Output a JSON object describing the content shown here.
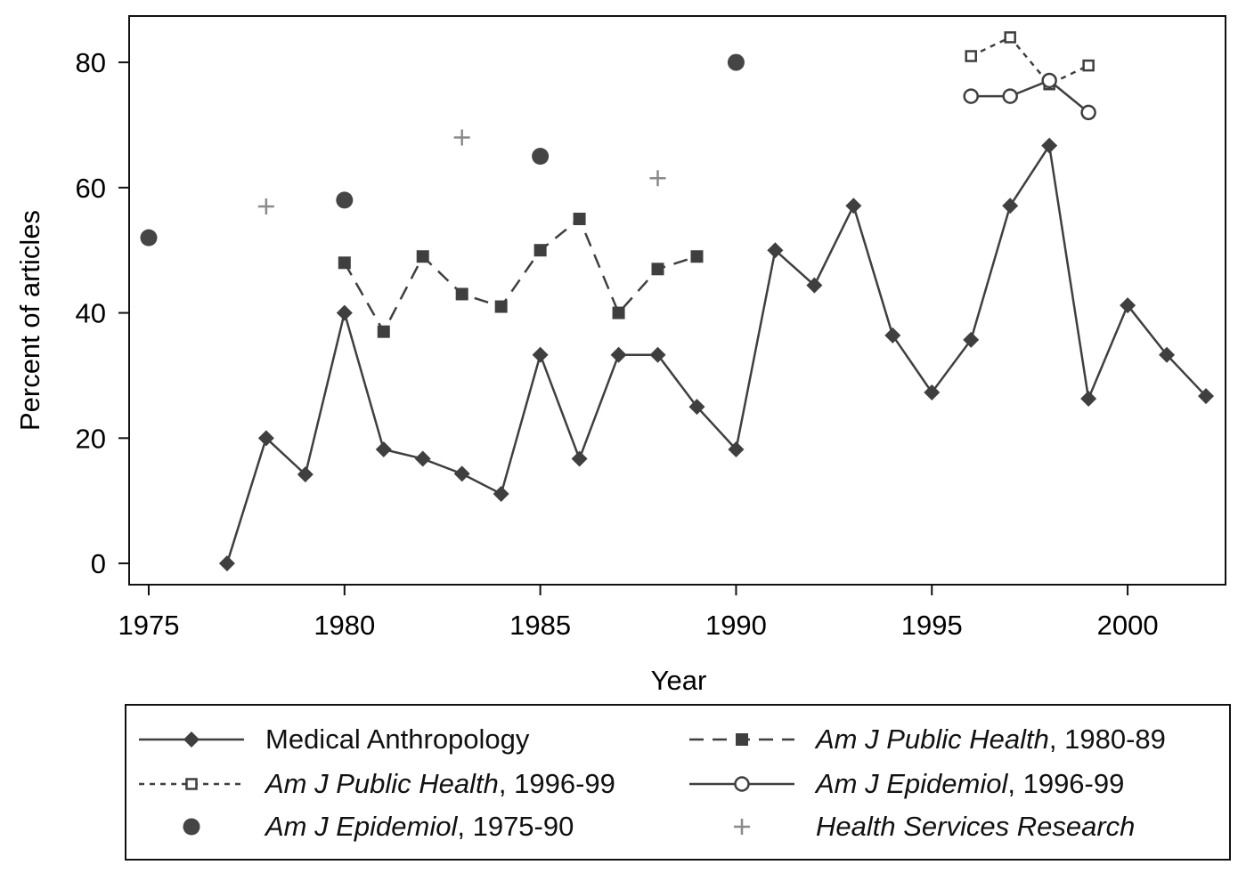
{
  "chart_data": {
    "type": "line",
    "title": "",
    "xlabel": "Year",
    "ylabel": "Percent of articles",
    "xlim": [
      1974.5,
      2002.5
    ],
    "ylim": [
      -3.4,
      87.4
    ],
    "xticks": [
      1975,
      1980,
      1985,
      1990,
      1995,
      2000
    ],
    "yticks": [
      0,
      20,
      40,
      60,
      80
    ],
    "grid": false,
    "legend_position": "bottom",
    "series": [
      {
        "name": "Medical Anthropology",
        "label_italic": "",
        "label_rest": "Medical Anthropology",
        "style": "solid",
        "marker": "diamond",
        "color": "#3f3f3f",
        "x": [
          1977,
          1978,
          1979,
          1980,
          1981,
          1982,
          1983,
          1984,
          1985,
          1986,
          1987,
          1988,
          1989,
          1990,
          1991,
          1992,
          1993,
          1994,
          1995,
          1996,
          1997,
          1998,
          1999,
          2000,
          2001,
          2002
        ],
        "y": [
          0,
          20,
          14.2,
          40,
          18.2,
          16.7,
          14.3,
          11.1,
          33.3,
          16.7,
          33.3,
          33.3,
          25,
          18.2,
          50,
          44.4,
          57.1,
          36.4,
          27.3,
          35.7,
          57.1,
          66.7,
          26.3,
          41.2,
          33.3,
          26.7
        ]
      },
      {
        "name": "Am J Public Health, 1980-89",
        "label_italic": "Am J Public Health",
        "label_rest": ", 1980-89",
        "style": "dashed",
        "marker": "square",
        "color": "#3f3f3f",
        "x": [
          1980,
          1981,
          1982,
          1983,
          1984,
          1985,
          1986,
          1987,
          1988,
          1989
        ],
        "y": [
          48,
          37,
          49,
          43,
          41,
          50,
          55,
          40,
          47,
          49
        ]
      },
      {
        "name": "Am J Public Health, 1996-99",
        "label_italic": "Am J Public Health",
        "label_rest": ", 1996-99",
        "style": "dotted",
        "marker": "square-hollow",
        "color": "#3f3f3f",
        "x": [
          1996,
          1997,
          1998,
          1999
        ],
        "y": [
          81,
          84,
          76.5,
          79.5
        ]
      },
      {
        "name": "Am J Epidemiol, 1996-99",
        "label_italic": "Am J Epidemiol",
        "label_rest": ", 1996-99",
        "style": "solid",
        "marker": "circle-hollow",
        "color": "#3f3f3f",
        "x": [
          1996,
          1997,
          1998,
          1999
        ],
        "y": [
          74.6,
          74.6,
          77.1,
          72
        ]
      },
      {
        "name": "Am J Epidemiol, 1975-90",
        "label_italic": "Am J Epidemiol",
        "label_rest": ", 1975-90",
        "style": "none",
        "marker": "circle",
        "color": "#454545",
        "x": [
          1975,
          1980,
          1985,
          1990
        ],
        "y": [
          52,
          58,
          65,
          80
        ]
      },
      {
        "name": "Health Services Research",
        "label_italic": "Health Services Research",
        "label_rest": "",
        "style": "none",
        "marker": "plus",
        "color": "#8a8a8a",
        "x": [
          1978,
          1983,
          1988
        ],
        "y": [
          57,
          68,
          61.5
        ]
      }
    ]
  }
}
